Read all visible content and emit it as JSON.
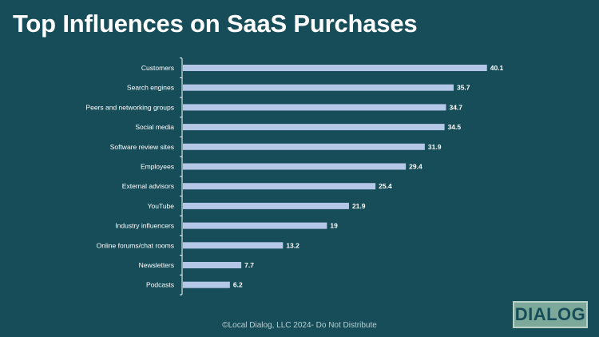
{
  "slide": {
    "title": "Top Influences on SaaS Purchases",
    "footer": "©Local Dialog, LLC 2024- Do Not Distribute",
    "logo_text": "DIALOG"
  },
  "colors": {
    "background": "#174d59",
    "bar": "#b4c7e7",
    "axis": "#ffffff",
    "text": "#ffffff",
    "logo_bg": "#7da99a"
  },
  "chart_data": {
    "type": "bar",
    "orientation": "horizontal",
    "title": "",
    "xlabel": "",
    "ylabel": "",
    "xlim": [
      0,
      42
    ],
    "grid": false,
    "legend": "none",
    "categories": [
      "Customers",
      "Search engines",
      "Peers and networking groups",
      "Social media",
      "Software review sites",
      "Employees",
      "External advisors",
      "YouTube",
      "Industry influencers",
      "Online forums/chat rooms",
      "Newsletters",
      "Podcasts"
    ],
    "values": [
      40.1,
      35.7,
      34.7,
      34.5,
      31.9,
      29.4,
      25.4,
      21.9,
      19,
      13.2,
      7.7,
      6.2
    ],
    "labels": [
      "40.1",
      "35.7",
      "34.7",
      "34.5",
      "31.9",
      "29.4",
      "25.4",
      "21.9",
      "19",
      "13.2",
      "7.7",
      "6.2"
    ]
  }
}
